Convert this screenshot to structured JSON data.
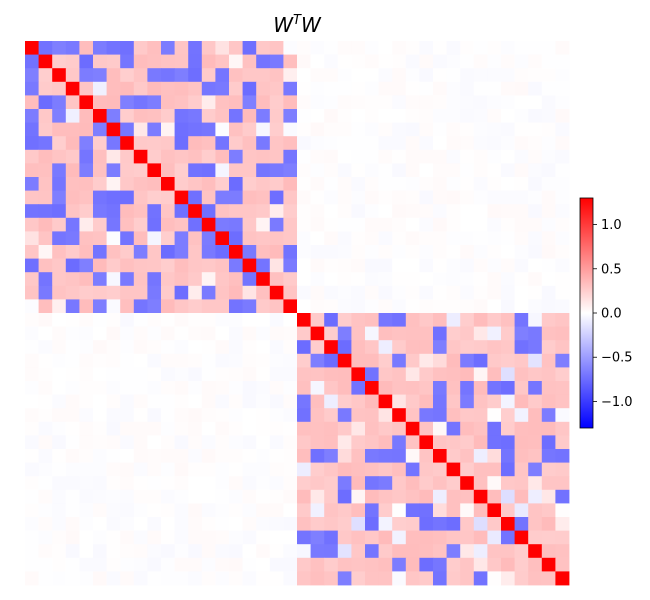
{
  "chart_data": {
    "type": "heatmap",
    "title": "W^T W",
    "title_parts": {
      "base1": "W",
      "superscript": "T",
      "base2": "W"
    },
    "xlabel": "",
    "ylabel": "",
    "n_rows": 40,
    "n_cols": 40,
    "block_size": 20,
    "structure": "block-diagonal: two 20x20 blocks along the main diagonal; off-diagonal blocks near zero",
    "diagonal_value": 1.3,
    "typical_in_block_values": [
      0.3,
      -0.7
    ],
    "off_block_value_range": [
      -0.03,
      0.03
    ],
    "colormap": "bwr",
    "colorbar": {
      "vmin": -1.3,
      "vmax": 1.3,
      "ticks": [
        1.0,
        0.5,
        0.0,
        -0.5,
        -1.0
      ],
      "tick_labels": [
        "1.0",
        "0.5",
        "0.0",
        "−0.5",
        "−1.0"
      ],
      "position": "right"
    },
    "grid": false
  }
}
